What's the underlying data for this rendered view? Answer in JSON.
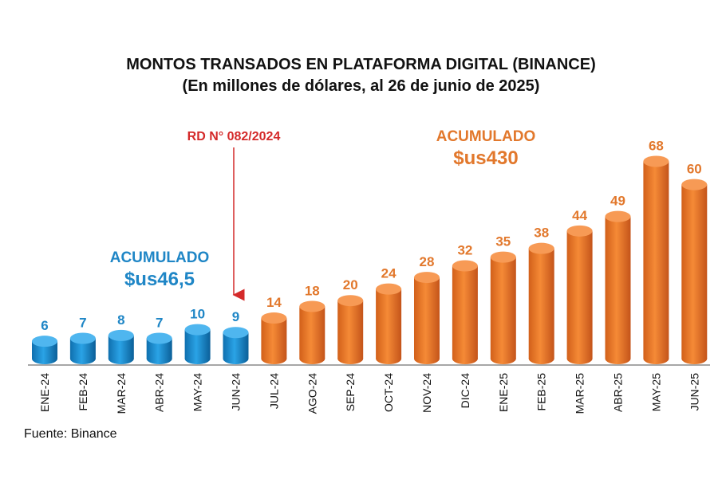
{
  "title": "MONTOS TRANSADOS EN PLATAFORMA DIGITAL (BINANCE)",
  "subtitle": "(En millones de dólares, al 26 de junio de 2025)",
  "source": "Fuente: Binance",
  "colors": {
    "blue": "#1a8fd0",
    "orange": "#ef7a22",
    "red": "#d42a2a",
    "blue_text": "#1f86c6",
    "orange_text": "#e2782c"
  },
  "annotations": {
    "blue_label": "ACUMULADO",
    "blue_value": "$us46,5",
    "orange_label": "ACUMULADO",
    "orange_value": "$us430",
    "marker_label": "RD N° 082/2024"
  },
  "chart_data": {
    "type": "bar",
    "categories": [
      "ENE-24",
      "FEB-24",
      "MAR-24",
      "ABR-24",
      "MAY-24",
      "JUN-24",
      "JUL-24",
      "AGO-24",
      "SEP-24",
      "OCT-24",
      "NOV-24",
      "DIC-24",
      "ENE-25",
      "FEB-25",
      "MAR-25",
      "ABR-25",
      "MAY-25",
      "JUN-25"
    ],
    "values": [
      6,
      7,
      8,
      7,
      10,
      9,
      14,
      18,
      20,
      24,
      28,
      32,
      35,
      38,
      44,
      49,
      68,
      60
    ],
    "bar_colors": [
      "blue",
      "blue",
      "blue",
      "blue",
      "blue",
      "blue",
      "orange",
      "orange",
      "orange",
      "orange",
      "orange",
      "orange",
      "orange",
      "orange",
      "orange",
      "orange",
      "orange",
      "orange"
    ],
    "title": "MONTOS TRANSADOS EN PLATAFORMA DIGITAL (BINANCE)",
    "subtitle": "(En millones de dólares, al 26 de junio de 2025)",
    "legend": "none",
    "grid": false
  }
}
